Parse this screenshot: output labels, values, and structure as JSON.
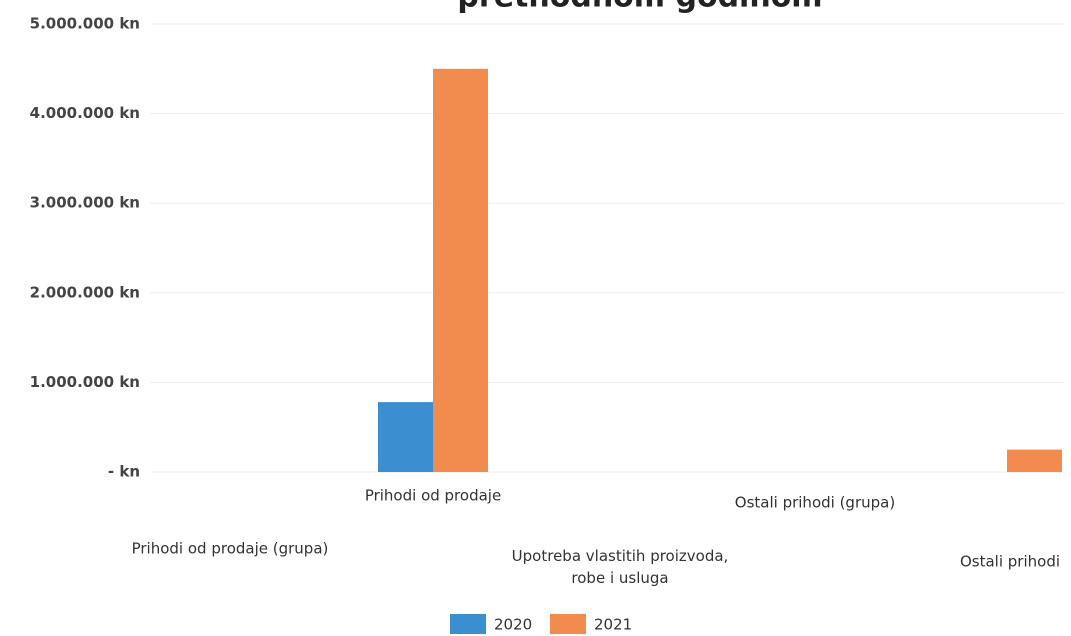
{
  "chart_data": {
    "type": "bar",
    "title": "prethodnom godinom",
    "categories": [
      "Prihodi od prodaje",
      "Upotreba vlastitih proizvoda, robe i usluga",
      "Ostali prihodi"
    ],
    "groups": [
      "Prihodi od prodaje (grupa)",
      "Ostali prihodi (grupa)"
    ],
    "series": [
      {
        "name": "2020",
        "color": "#3b8fd1",
        "values": [
          780000,
          0,
          0
        ]
      },
      {
        "name": "2021",
        "color": "#f28c4e",
        "values": [
          4500000,
          0,
          250000
        ]
      }
    ],
    "ylim": [
      0,
      5000000
    ],
    "yticks": [
      {
        "value": 0,
        "label": "- kn"
      },
      {
        "value": 1000000,
        "label": "1.000.000 kn"
      },
      {
        "value": 2000000,
        "label": "2.000.000 kn"
      },
      {
        "value": 3000000,
        "label": "3.000.000 kn"
      },
      {
        "value": 4000000,
        "label": "4.000.000 kn"
      },
      {
        "value": 5000000,
        "label": "5.000.000 kn"
      }
    ],
    "grid": true,
    "legend": "bottom"
  }
}
